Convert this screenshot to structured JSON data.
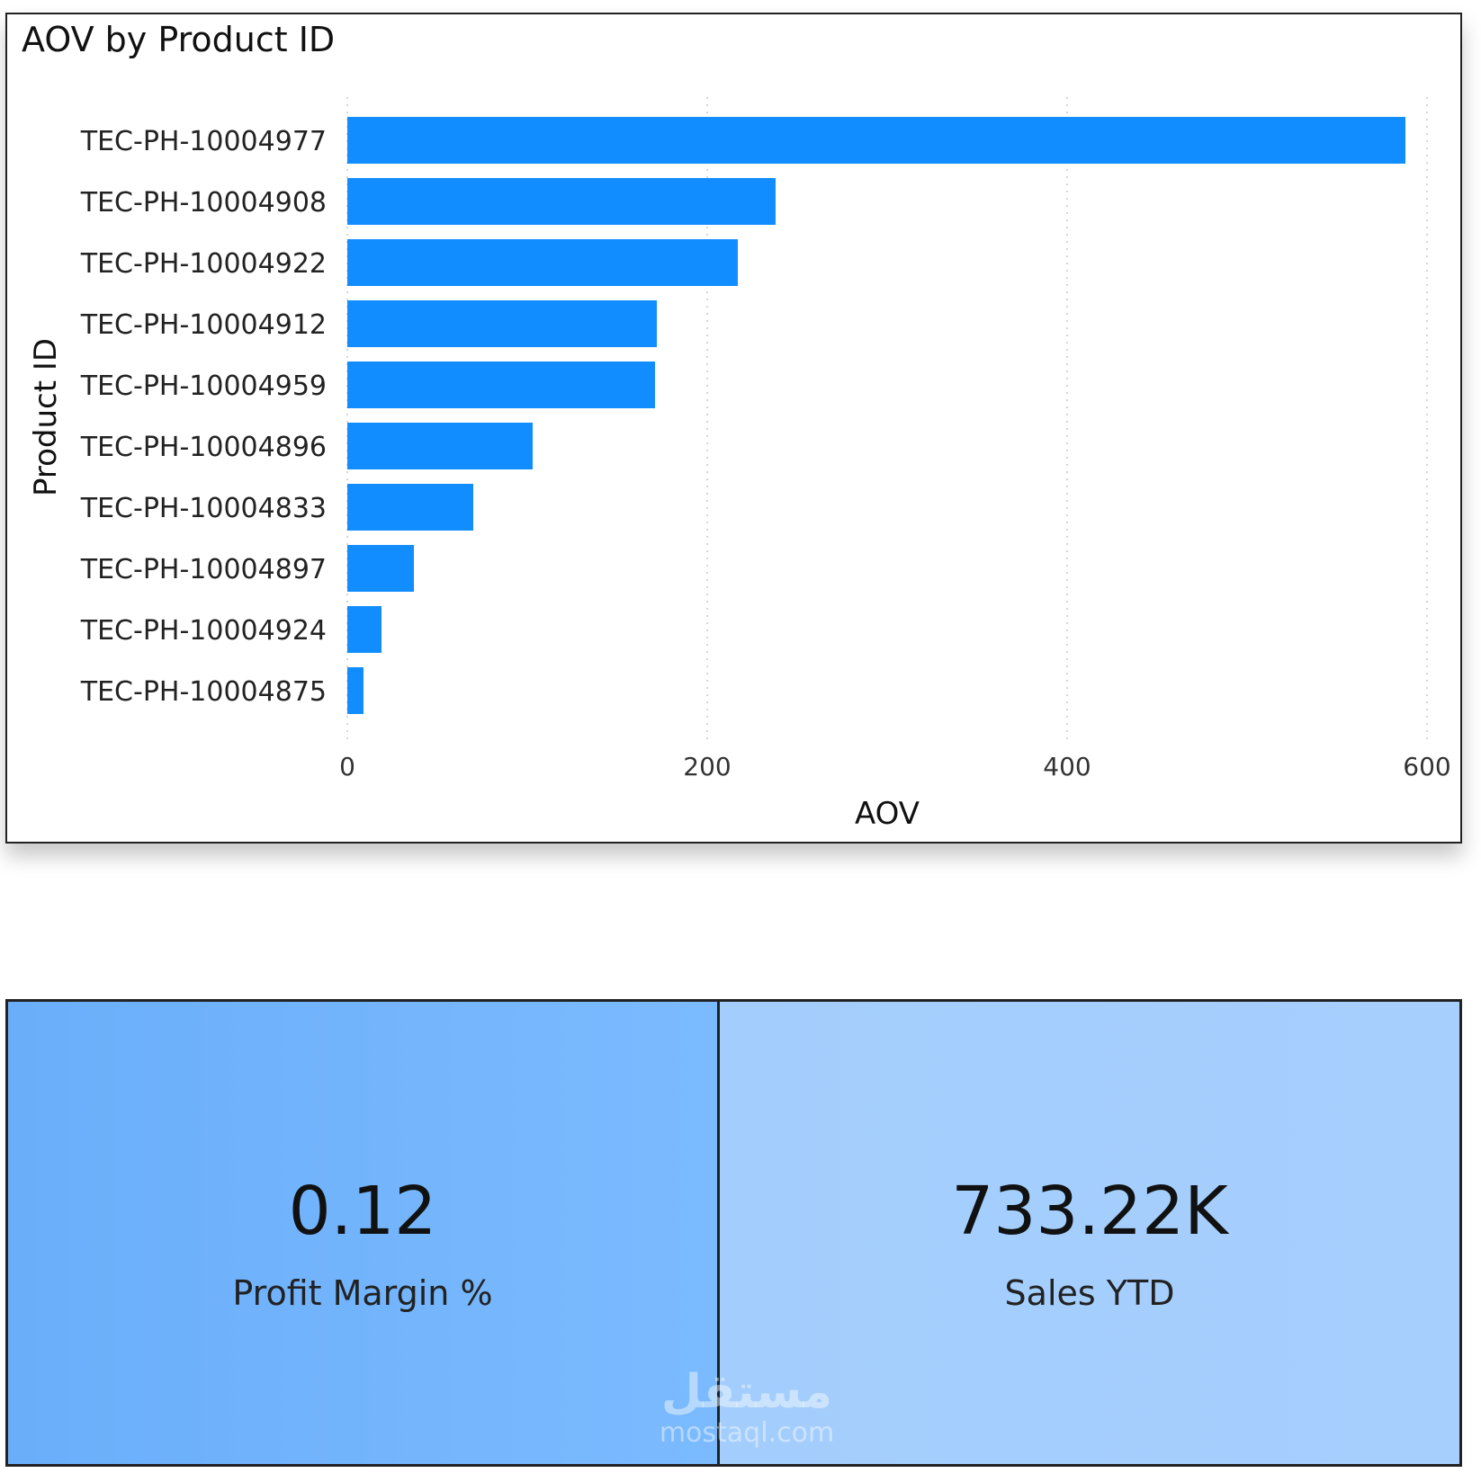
{
  "chart_data": {
    "type": "bar",
    "orientation": "horizontal",
    "title": "AOV by Product ID",
    "xlabel": "AOV",
    "ylabel": "Product ID",
    "xlim": [
      0,
      600
    ],
    "xticks": [
      0,
      200,
      400,
      600
    ],
    "grid": true,
    "color": "#118dff",
    "categories": [
      "TEC-PH-10004977",
      "TEC-PH-10004908",
      "TEC-PH-10004922",
      "TEC-PH-10004912",
      "TEC-PH-10004959",
      "TEC-PH-10004896",
      "TEC-PH-10004833",
      "TEC-PH-10004897",
      "TEC-PH-10004924",
      "TEC-PH-10004875"
    ],
    "values": [
      588,
      238,
      217,
      172,
      171,
      103,
      70,
      37,
      19,
      9
    ]
  },
  "kpis": {
    "profit": {
      "value": "0.12",
      "label": "Profit Margin %",
      "color": "#78b6fd"
    },
    "sales": {
      "value": "733.22K",
      "label": "Sales YTD",
      "color": "#a5cefd"
    }
  },
  "watermark": {
    "arabic": "مستقل",
    "latin": "mostaql.com"
  }
}
